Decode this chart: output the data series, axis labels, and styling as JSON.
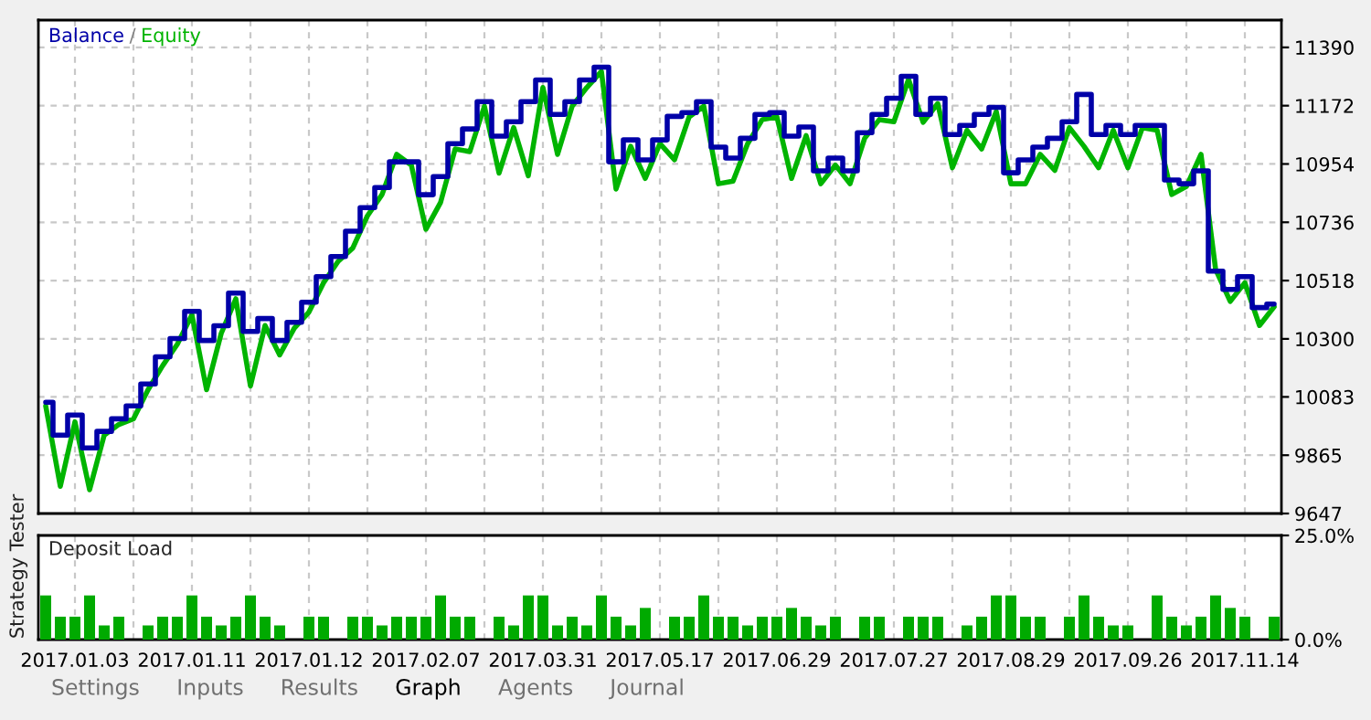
{
  "chart_data": [
    {
      "type": "line",
      "legend": "top left",
      "grid": true,
      "tick_labels": "y",
      "categories": [
        null,
        null,
        "2017.01.03",
        null,
        null,
        null,
        null,
        null,
        null,
        null,
        "2017.01.11",
        null,
        null,
        null,
        null,
        null,
        null,
        null,
        "2017.01.12",
        null,
        null,
        null,
        null,
        null,
        null,
        null,
        "2017.02.07",
        null,
        null,
        null,
        null,
        null,
        null,
        null,
        "2017.03.31",
        null,
        null,
        null,
        null,
        null,
        null,
        null,
        "2017.05.17",
        null,
        null,
        null,
        null,
        null,
        null,
        null,
        "2017.06.29",
        null,
        null,
        null,
        null,
        null,
        null,
        null,
        "2017.07.27",
        null,
        null,
        null,
        null,
        null,
        null,
        null,
        "2017.08.29",
        null,
        null,
        null,
        null,
        null,
        null,
        null,
        "2017.09.26",
        null,
        null,
        null,
        null,
        null,
        null,
        null,
        "2017.11.14",
        null,
        null
      ],
      "ylim": [
        9647,
        11492
      ],
      "yticks": [
        9647,
        9865,
        10083,
        10300,
        10518,
        10736,
        10954,
        11172,
        11390
      ],
      "annotations": [
        "/"
      ],
      "series": [
        {
          "name": "Balance",
          "type": "step",
          "color": "#0000a8",
          "values": [
            10063,
            9940,
            10015,
            9892,
            9954,
            10001,
            10049,
            10131,
            10233,
            10301,
            10403,
            10294,
            10349,
            10471,
            10328,
            10376,
            10294,
            10362,
            10437,
            10533,
            10608,
            10703,
            10791,
            10866,
            10962,
            10962,
            10839,
            10907,
            11030,
            11085,
            11187,
            11058,
            11112,
            11187,
            11268,
            11139,
            11187,
            11268,
            11316,
            10962,
            11044,
            10969,
            11044,
            11132,
            11146,
            11187,
            11017,
            10976,
            11050,
            11139,
            11146,
            11058,
            11092,
            10928,
            10976,
            10928,
            11071,
            11139,
            11200,
            11282,
            11139,
            11200,
            11064,
            11098,
            11139,
            11166,
            10921,
            10969,
            11017,
            11050,
            11112,
            11214,
            11064,
            11098,
            11064,
            11098,
            11098,
            10894,
            10880,
            10928,
            10553,
            10485,
            10533,
            10417,
            10430
          ]
        },
        {
          "name": "Equity",
          "type": "line",
          "color": "#00b400",
          "values": [
            10049,
            9749,
            9990,
            9736,
            9940,
            9980,
            10001,
            10110,
            10200,
            10280,
            10390,
            10110,
            10320,
            10450,
            10124,
            10350,
            10240,
            10340,
            10400,
            10510,
            10590,
            10640,
            10760,
            10840,
            10990,
            10950,
            10710,
            10810,
            11010,
            11000,
            11170,
            10920,
            11090,
            10910,
            11240,
            10990,
            11170,
            11240,
            11300,
            10860,
            11020,
            10900,
            11030,
            10970,
            11130,
            11170,
            10880,
            10890,
            11030,
            11120,
            11130,
            10900,
            11060,
            10880,
            10950,
            10880,
            11050,
            11120,
            11112,
            11270,
            11110,
            11180,
            10940,
            11080,
            11010,
            11150,
            10880,
            10880,
            10990,
            10930,
            11090,
            11020,
            10940,
            11080,
            10940,
            11090,
            11080,
            10840,
            10870,
            10990,
            10560,
            10440,
            10510,
            10350,
            10420
          ]
        }
      ]
    },
    {
      "type": "bar",
      "title": "Deposit Load",
      "grid": "x",
      "color": "#00aa00",
      "categories": [
        null,
        null,
        "2017.01.03",
        null,
        null,
        null,
        null,
        null,
        null,
        null,
        "2017.01.11",
        null,
        null,
        null,
        null,
        null,
        null,
        null,
        "2017.01.12",
        null,
        null,
        null,
        null,
        null,
        null,
        null,
        "2017.02.07",
        null,
        null,
        null,
        null,
        null,
        null,
        null,
        "2017.03.31",
        null,
        null,
        null,
        null,
        null,
        null,
        null,
        "2017.05.17",
        null,
        null,
        null,
        null,
        null,
        null,
        null,
        "2017.06.29",
        null,
        null,
        null,
        null,
        null,
        null,
        null,
        "2017.07.27",
        null,
        null,
        null,
        null,
        null,
        null,
        null,
        "2017.08.29",
        null,
        null,
        null,
        null,
        null,
        null,
        null,
        "2017.09.26",
        null,
        null,
        null,
        null,
        null,
        null,
        null,
        "2017.11.14",
        null,
        null
      ],
      "ylim": [
        0,
        25
      ],
      "yticks": [
        {
          "value": 0,
          "label": "0.0%"
        },
        {
          "value": 25,
          "label": "25.0%"
        }
      ],
      "values": [
        10.6,
        5.5,
        5.5,
        10.6,
        3.4,
        5.5,
        null,
        3.4,
        5.5,
        5.5,
        10.6,
        5.5,
        3.4,
        5.5,
        10.6,
        5.5,
        3.4,
        null,
        5.5,
        5.5,
        null,
        5.5,
        5.5,
        3.4,
        5.5,
        5.5,
        5.5,
        10.6,
        5.5,
        5.5,
        null,
        5.5,
        3.4,
        10.6,
        10.6,
        3.4,
        5.5,
        3.4,
        10.6,
        5.5,
        3.4,
        7.6,
        null,
        5.5,
        5.5,
        10.6,
        5.5,
        5.5,
        3.4,
        5.5,
        5.5,
        7.6,
        5.5,
        3.4,
        5.5,
        null,
        5.5,
        5.5,
        null,
        5.5,
        5.5,
        5.5,
        null,
        3.4,
        5.5,
        10.6,
        10.6,
        5.5,
        5.5,
        null,
        5.5,
        10.6,
        5.5,
        3.4,
        3.4,
        null,
        10.6,
        5.5,
        3.4,
        5.5,
        10.6,
        7.6,
        5.5,
        null,
        5.5
      ]
    },
    {
      "type": "other",
      "annotations": [
        "Strategy Tester",
        "Settings",
        "Inputs",
        "Results",
        "Graph",
        "Agents",
        "Journal"
      ]
    }
  ]
}
